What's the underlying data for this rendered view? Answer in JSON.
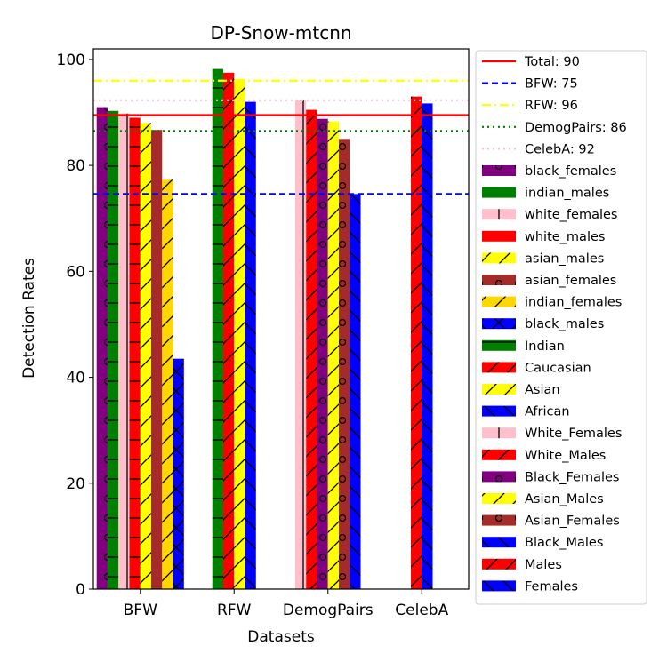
{
  "chart_data": {
    "type": "bar",
    "title": "DP-Snow-mtcnn",
    "xlabel": "Datasets",
    "ylabel": "Detection Rates",
    "categories": [
      "BFW",
      "RFW",
      "DemogPairs",
      "CelebA"
    ],
    "ylim": [
      0,
      102
    ],
    "yticks": [
      0,
      20,
      40,
      60,
      80,
      100
    ],
    "grid": false,
    "legend_position": "outside-right",
    "reference_lines": [
      {
        "name": "Total: 90",
        "value": 89.5,
        "color": "#ff0000",
        "style": "solid"
      },
      {
        "name": "BFW: 75",
        "value": 74.6,
        "color": "#0000ff",
        "style": "dashed"
      },
      {
        "name": "RFW: 96",
        "value": 96.0,
        "color": "#ffff00",
        "style": "dashdot"
      },
      {
        "name": "DemogPairs: 86",
        "value": 86.5,
        "color": "#008000",
        "style": "dotted"
      },
      {
        "name": "CelebA: 92",
        "value": 92.3,
        "color": "#ffc0cb",
        "style": "dotted"
      }
    ],
    "groups": [
      {
        "category": "BFW",
        "bars": [
          {
            "series": "black_females",
            "value": 91.0
          },
          {
            "series": "indian_males",
            "value": 90.3
          },
          {
            "series": "white_females",
            "value": 89.8
          },
          {
            "series": "white_males",
            "value": 89.0
          },
          {
            "series": "asian_males",
            "value": 88.0
          },
          {
            "series": "asian_females",
            "value": 86.7
          },
          {
            "series": "indian_females",
            "value": 77.3
          },
          {
            "series": "black_males",
            "value": 43.5
          }
        ]
      },
      {
        "category": "RFW",
        "bars": [
          {
            "series": "Indian",
            "value": 98.2
          },
          {
            "series": "Caucasian",
            "value": 97.5
          },
          {
            "series": "Asian",
            "value": 96.3
          },
          {
            "series": "African",
            "value": 92.0
          }
        ]
      },
      {
        "category": "DemogPairs",
        "bars": [
          {
            "series": "White_Females",
            "value": 92.3
          },
          {
            "series": "White_Males",
            "value": 90.5
          },
          {
            "series": "Black_Females",
            "value": 88.8
          },
          {
            "series": "Asian_Males",
            "value": 88.3
          },
          {
            "series": "Asian_Females",
            "value": 85.0
          },
          {
            "series": "Black_Males",
            "value": 74.6
          }
        ]
      },
      {
        "category": "CelebA",
        "bars": [
          {
            "series": "Males",
            "value": 93.0
          },
          {
            "series": "Females",
            "value": 91.7
          }
        ]
      }
    ],
    "series": [
      {
        "name": "black_females",
        "color": "#800080",
        "hatch": "circles"
      },
      {
        "name": "indian_males",
        "color": "#008000",
        "hatch": "horizontal"
      },
      {
        "name": "white_females",
        "color": "#ffc0cb",
        "hatch": "vertical"
      },
      {
        "name": "white_males",
        "color": "#ff0000",
        "hatch": "horizontal"
      },
      {
        "name": "asian_males",
        "color": "#ffff00",
        "hatch": "diagonal"
      },
      {
        "name": "asian_females",
        "color": "#a52a2a",
        "hatch": "circles"
      },
      {
        "name": "indian_females",
        "color": "#ffd700",
        "hatch": "diagonal"
      },
      {
        "name": "black_males",
        "color": "#0000ff",
        "hatch": "cross"
      },
      {
        "name": "Indian",
        "color": "#008000",
        "hatch": "horizontal"
      },
      {
        "name": "Caucasian",
        "color": "#ff0000",
        "hatch": "diagonal"
      },
      {
        "name": "Asian",
        "color": "#ffff00",
        "hatch": "diagonal"
      },
      {
        "name": "African",
        "color": "#0000ff",
        "hatch": "backdiagonal"
      },
      {
        "name": "White_Females",
        "color": "#ffc0cb",
        "hatch": "vertical"
      },
      {
        "name": "White_Males",
        "color": "#ff0000",
        "hatch": "diagonal"
      },
      {
        "name": "Black_Females",
        "color": "#800080",
        "hatch": "circles"
      },
      {
        "name": "Asian_Males",
        "color": "#ffff00",
        "hatch": "diagonal"
      },
      {
        "name": "Asian_Females",
        "color": "#a52a2a",
        "hatch": "circles"
      },
      {
        "name": "Black_Males",
        "color": "#0000ff",
        "hatch": "backdiagonal"
      },
      {
        "name": "Males",
        "color": "#ff0000",
        "hatch": "diagonal"
      },
      {
        "name": "Females",
        "color": "#0000ff",
        "hatch": "backdiagonal"
      }
    ]
  }
}
